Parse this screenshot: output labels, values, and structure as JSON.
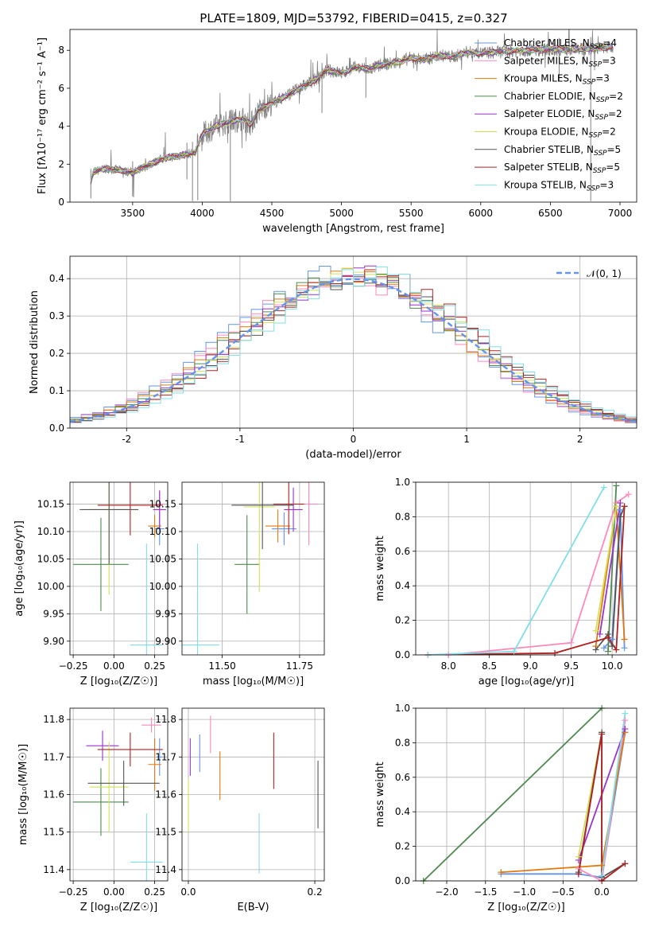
{
  "figure": {
    "title": "PLATE=1809, MJD=53792, FIBERID=0415, z=0.327"
  },
  "colors": {
    "Chabrier MILES": "#6495ed",
    "Salpeter MILES": "#ff88bb",
    "Kroupa MILES": "#e07a10",
    "Chabrier ELODIE": "#4e8a4e",
    "Salpeter ELODIE": "#9932cc",
    "Kroupa ELODIE": "#d4e157",
    "Chabrier STELIB": "#555555",
    "Salpeter STELIB": "#b22222",
    "Kroupa STELIB": "#80deea",
    "gauss": "#6495ed"
  },
  "legend": {
    "spectrum": [
      {
        "model": "Chabrier MILES",
        "text": "Chabrier MILES, N",
        "sub": "SSP",
        "tail": "=4"
      },
      {
        "model": "Salpeter MILES",
        "text": "Salpeter MILES, N",
        "sub": "SSP",
        "tail": "=3"
      },
      {
        "model": "Kroupa MILES",
        "text": "Kroupa MILES, N",
        "sub": "SSP",
        "tail": "=3"
      },
      {
        "model": "Chabrier ELODIE",
        "text": "Chabrier ELODIE, N",
        "sub": "SSP",
        "tail": "=2"
      },
      {
        "model": "Salpeter ELODIE",
        "text": "Salpeter ELODIE, N",
        "sub": "SSP",
        "tail": "=2"
      },
      {
        "model": "Kroupa ELODIE",
        "text": "Kroupa ELODIE, N",
        "sub": "SSP",
        "tail": "=2"
      },
      {
        "model": "Chabrier STELIB",
        "text": "Chabrier STELIB, N",
        "sub": "SSP",
        "tail": "=5"
      },
      {
        "model": "Salpeter STELIB",
        "text": "Salpeter STELIB, N",
        "sub": "SSP",
        "tail": "=5"
      },
      {
        "model": "Kroupa STELIB",
        "text": "Kroupa STELIB, N",
        "sub": "SSP",
        "tail": "=3"
      }
    ],
    "hist": "𝒩(0, 1)"
  },
  "chart_data": [
    {
      "id": "spectrum",
      "type": "line",
      "xlabel": "wavelength [Angstrom, rest frame]",
      "ylabel": "Flux [fλ10⁻¹⁷ erg cm⁻² s⁻¹ A⁻¹]",
      "xlim": [
        3050,
        7120
      ],
      "ylim": [
        0,
        9.1
      ],
      "xticks": [
        3500,
        4000,
        4500,
        5000,
        5500,
        6000,
        6500,
        7000
      ],
      "yticks": [
        0,
        2,
        4,
        6,
        8
      ],
      "data_color": "#808080",
      "continuum": [
        [
          3200,
          1.15
        ],
        [
          3220,
          1.6
        ],
        [
          3300,
          1.75
        ],
        [
          3400,
          1.7
        ],
        [
          3500,
          1.55
        ],
        [
          3600,
          1.9
        ],
        [
          3700,
          2.25
        ],
        [
          3800,
          2.4
        ],
        [
          3900,
          2.55
        ],
        [
          3950,
          2.6
        ],
        [
          4000,
          3.55
        ],
        [
          4100,
          4.0
        ],
        [
          4200,
          4.25
        ],
        [
          4300,
          4.4
        ],
        [
          4350,
          4.1
        ],
        [
          4400,
          4.8
        ],
        [
          4500,
          5.2
        ],
        [
          4600,
          5.6
        ],
        [
          4700,
          6.0
        ],
        [
          4800,
          6.4
        ],
        [
          4900,
          6.95
        ],
        [
          5000,
          6.8
        ],
        [
          5100,
          7.1
        ],
        [
          5200,
          7.0
        ],
        [
          5300,
          7.25
        ],
        [
          5400,
          7.35
        ],
        [
          5500,
          7.6
        ],
        [
          5600,
          7.5
        ],
        [
          5700,
          7.75
        ],
        [
          5800,
          7.65
        ],
        [
          5900,
          7.9
        ],
        [
          6000,
          7.85
        ],
        [
          6100,
          7.9
        ],
        [
          6300,
          8.0
        ],
        [
          6500,
          8.05
        ],
        [
          6700,
          8.05
        ],
        [
          6900,
          8.15
        ],
        [
          6950,
          8.2
        ]
      ],
      "dips": [
        [
          3200,
          0.2
        ],
        [
          3500,
          0.3
        ],
        [
          3890,
          1.2
        ],
        [
          3930,
          0.05
        ],
        [
          3968,
          0.1
        ],
        [
          4202,
          0.05
        ],
        [
          4860,
          4.7
        ],
        [
          5175,
          5.5
        ],
        [
          6563,
          6.4
        ],
        [
          6790,
          0.05
        ]
      ]
    },
    {
      "id": "residuals",
      "type": "histogram",
      "xlabel": "(data-model)/error",
      "ylabel": "Normed distribution",
      "xlim": [
        -2.5,
        2.5
      ],
      "ylim": [
        0,
        0.46
      ],
      "xticks": [
        -2,
        -1,
        0,
        1,
        2
      ],
      "yticks": [
        0.0,
        0.1,
        0.2,
        0.3,
        0.4
      ],
      "bin_width": 0.1,
      "gaussian": {
        "mu": 0,
        "sigma": 1
      }
    },
    {
      "id": "age_vs_Z",
      "type": "scatter",
      "xlabel": "Z [log₁₀(Z/Z☉)]",
      "ylabel": "age  [log₁₀(age/yr)]",
      "xlim": [
        -0.27,
        0.33
      ],
      "ylim": [
        9.875,
        10.19
      ],
      "xticks": [
        -0.25,
        0.0,
        0.25
      ],
      "xtick_labels": [
        "−0.25",
        "0.00",
        "0.25"
      ],
      "yticks": [
        9.9,
        9.95,
        10.0,
        10.05,
        10.1,
        10.15
      ],
      "points": [
        {
          "model": "Chabrier MILES",
          "x": 0.28,
          "y": 10.105,
          "xerr": 0.03,
          "yerr": 0.03
        },
        {
          "model": "Salpeter MILES",
          "x": 0.28,
          "y": 10.15,
          "xerr": 0.03,
          "yerr": 0.025
        },
        {
          "model": "Kroupa MILES",
          "x": 0.25,
          "y": 10.11,
          "xerr": 0.04,
          "yerr": 0.02
        },
        {
          "model": "Chabrier ELODIE",
          "x": -0.08,
          "y": 10.04,
          "xerr": 0.17,
          "yerr": 0.085
        },
        {
          "model": "Salpeter ELODIE",
          "x": 0.28,
          "y": 10.14,
          "xerr": 0.04,
          "yerr": 0.035
        },
        {
          "model": "Kroupa ELODIE",
          "x": -0.03,
          "y": 10.14,
          "xerr": 0.12,
          "yerr": 0.155
        },
        {
          "model": "Chabrier STELIB",
          "x": -0.03,
          "y": 10.14,
          "xerr": 0.18,
          "yerr": 0.1
        },
        {
          "model": "Salpeter STELIB",
          "x": 0.1,
          "y": 10.148,
          "xerr": 0.2,
          "yerr": 0.055
        },
        {
          "model": "Kroupa STELIB",
          "x": 0.2,
          "y": 9.893,
          "xerr": 0.1,
          "yerr": 0.185
        }
      ]
    },
    {
      "id": "age_vs_mass",
      "type": "scatter",
      "xlabel": "mass [log₁₀(M/M☉)]",
      "ylabel": "",
      "xlim": [
        11.37,
        11.83
      ],
      "ylim": [
        9.875,
        10.19
      ],
      "xticks": [
        11.5,
        11.75
      ],
      "xtick_labels": [
        "11.50",
        "11.75"
      ],
      "yticks": [
        9.9,
        9.95,
        10.0,
        10.05,
        10.1,
        10.15
      ],
      "points": [
        {
          "model": "Chabrier MILES",
          "x": 11.7,
          "y": 10.105,
          "xerr": 0.04,
          "yerr": 0.03
        },
        {
          "model": "Salpeter MILES",
          "x": 11.78,
          "y": 10.15,
          "xerr": 0.03,
          "yerr": 0.075
        },
        {
          "model": "Kroupa MILES",
          "x": 11.68,
          "y": 10.11,
          "xerr": 0.04,
          "yerr": 0.03
        },
        {
          "model": "Chabrier ELODIE",
          "x": 11.58,
          "y": 10.04,
          "xerr": 0.04,
          "yerr": 0.09
        },
        {
          "model": "Salpeter ELODIE",
          "x": 11.73,
          "y": 10.14,
          "xerr": 0.03,
          "yerr": 0.04
        },
        {
          "model": "Kroupa ELODIE",
          "x": 11.62,
          "y": 10.145,
          "xerr": 0.05,
          "yerr": 0.155
        },
        {
          "model": "Chabrier STELIB",
          "x": 11.63,
          "y": 10.148,
          "xerr": 0.1,
          "yerr": 0.08
        },
        {
          "model": "Salpeter STELIB",
          "x": 11.715,
          "y": 10.15,
          "xerr": 0.05,
          "yerr": 0.055
        },
        {
          "model": "Kroupa STELIB",
          "x": 11.42,
          "y": 9.893,
          "xerr": 0.07,
          "yerr": 0.185
        }
      ]
    },
    {
      "id": "weight_vs_age",
      "type": "line",
      "xlabel": "age  [log₁₀(age/yr)]",
      "ylabel": "mass weight",
      "xlim": [
        7.6,
        10.3
      ],
      "ylim": [
        0,
        1.0
      ],
      "xticks": [
        8.0,
        8.5,
        9.0,
        9.5,
        10.0
      ],
      "xtick_labels": [
        "8.0",
        "8.5",
        "9.0",
        "9.5",
        "10.0"
      ],
      "yticks": [
        0.0,
        0.2,
        0.4,
        0.6,
        0.8,
        1.0
      ],
      "series": [
        {
          "model": "Chabrier MILES",
          "x": [
            9.9,
            10.0,
            10.1,
            10.15
          ],
          "y": [
            0.04,
            0.09,
            0.84,
            0.04
          ]
        },
        {
          "model": "Salpeter MILES",
          "x": [
            7.75,
            8.0,
            9.5,
            10.05,
            10.2
          ],
          "y": [
            0.0,
            0.0,
            0.07,
            0.88,
            0.93
          ]
        },
        {
          "model": "Kroupa MILES",
          "x": [
            9.8,
            10.05,
            10.15
          ],
          "y": [
            0.05,
            0.86,
            0.09
          ]
        },
        {
          "model": "Chabrier ELODIE",
          "x": [
            9.95,
            10.05
          ],
          "y": [
            0.02,
            0.98
          ]
        },
        {
          "model": "Salpeter ELODIE",
          "x": [
            9.85,
            10.1
          ],
          "y": [
            0.12,
            0.88
          ]
        },
        {
          "model": "Kroupa ELODIE",
          "x": [
            9.8,
            10.05
          ],
          "y": [
            0.14,
            0.86
          ]
        },
        {
          "model": "Chabrier STELIB",
          "x": [
            9.8,
            9.95,
            10.0,
            10.1,
            10.15
          ],
          "y": [
            0.03,
            0.12,
            0.05,
            0.8,
            0.86
          ]
        },
        {
          "model": "Salpeter STELIB",
          "x": [
            7.75,
            9.3,
            9.95,
            10.05,
            10.15
          ],
          "y": [
            0.0,
            0.01,
            0.1,
            0.03,
            0.86
          ]
        },
        {
          "model": "Kroupa STELIB",
          "x": [
            7.75,
            8.8,
            9.9
          ],
          "y": [
            0.0,
            0.02,
            0.97
          ]
        }
      ]
    },
    {
      "id": "mass_vs_Z",
      "type": "scatter",
      "xlabel": "Z [log₁₀(Z/Z☉)]",
      "ylabel": "mass [log₁₀(M/M☉)]",
      "xlim": [
        -0.27,
        0.33
      ],
      "ylim": [
        11.37,
        11.83
      ],
      "xticks": [
        -0.25,
        0.0,
        0.25
      ],
      "xtick_labels": [
        "−0.25",
        "0.00",
        "0.25"
      ],
      "yticks": [
        11.4,
        11.5,
        11.6,
        11.7,
        11.8
      ],
      "points": [
        {
          "model": "Chabrier MILES",
          "x": 0.28,
          "y": 11.7,
          "xerr": 0.02,
          "yerr": 0.05
        },
        {
          "model": "Salpeter MILES",
          "x": 0.23,
          "y": 11.785,
          "xerr": 0.06,
          "yerr": 0.02
        },
        {
          "model": "Kroupa MILES",
          "x": 0.25,
          "y": 11.68,
          "xerr": 0.04,
          "yerr": 0.07
        },
        {
          "model": "Chabrier ELODIE",
          "x": -0.08,
          "y": 11.58,
          "xerr": 0.17,
          "yerr": 0.09
        },
        {
          "model": "Salpeter ELODIE",
          "x": -0.07,
          "y": 11.73,
          "xerr": 0.1,
          "yerr": 0.04
        },
        {
          "model": "Kroupa ELODIE",
          "x": -0.03,
          "y": 11.62,
          "xerr": 0.12,
          "yerr": 0.12
        },
        {
          "model": "Chabrier STELIB",
          "x": 0.06,
          "y": 11.63,
          "xerr": 0.22,
          "yerr": 0.06
        },
        {
          "model": "Salpeter STELIB",
          "x": 0.1,
          "y": 11.72,
          "xerr": 0.2,
          "yerr": 0.045
        },
        {
          "model": "Kroupa STELIB",
          "x": 0.2,
          "y": 11.42,
          "xerr": 0.1,
          "yerr": 0.13
        }
      ]
    },
    {
      "id": "mass_vs_ebv",
      "type": "scatter",
      "xlabel": "E(B-V)",
      "ylabel": "",
      "xlim": [
        -0.01,
        0.215
      ],
      "ylim": [
        11.37,
        11.83
      ],
      "xticks": [
        0.0,
        0.2
      ],
      "xtick_labels": [
        "0.0",
        "0.2"
      ],
      "yticks": [
        11.4,
        11.5,
        11.6,
        11.7,
        11.8
      ],
      "points": [
        {
          "model": "Chabrier MILES",
          "x": 0.018,
          "y": 11.71,
          "xerr": 0,
          "yerr": 0.05
        },
        {
          "model": "Salpeter MILES",
          "x": 0.035,
          "y": 11.76,
          "xerr": 0,
          "yerr": 0.05
        },
        {
          "model": "Kroupa MILES",
          "x": 0.05,
          "y": 11.65,
          "xerr": 0,
          "yerr": 0.065
        },
        {
          "model": "Salpeter ELODIE",
          "x": 0.003,
          "y": 11.7,
          "xerr": 0,
          "yerr": 0.05
        },
        {
          "model": "Kroupa ELODIE",
          "x": 0.0,
          "y": 11.57,
          "xerr": 0,
          "yerr": 0.07
        },
        {
          "model": "Chabrier STELIB",
          "x": 0.205,
          "y": 11.6,
          "xerr": 0,
          "yerr": 0.09
        },
        {
          "model": "Salpeter STELIB",
          "x": 0.135,
          "y": 11.69,
          "xerr": 0,
          "yerr": 0.075
        },
        {
          "model": "Kroupa STELIB",
          "x": 0.112,
          "y": 11.47,
          "xerr": 0,
          "yerr": 0.08
        }
      ]
    },
    {
      "id": "weight_vs_Z",
      "type": "line",
      "xlabel": "Z [log₁₀(Z/Z☉)]",
      "ylabel": "mass weight",
      "xlim": [
        -2.4,
        0.45
      ],
      "ylim": [
        0,
        1.0
      ],
      "xticks": [
        -2.0,
        -1.5,
        -1.0,
        -0.5,
        0.0
      ],
      "xtick_labels": [
        "−2.0",
        "−1.5",
        "−1.0",
        "−0.5",
        "0.0"
      ],
      "yticks": [
        0.0,
        0.2,
        0.4,
        0.6,
        0.8,
        1.0
      ],
      "series": [
        {
          "model": "Chabrier MILES",
          "x": [
            -1.3,
            -0.3,
            0.0,
            0.3
          ],
          "y": [
            0.04,
            0.04,
            0.02,
            0.86
          ]
        },
        {
          "model": "Salpeter MILES",
          "x": [
            -0.3,
            0.0,
            0.3
          ],
          "y": [
            0.07,
            0.0,
            0.93
          ]
        },
        {
          "model": "Kroupa MILES",
          "x": [
            -1.3,
            0.0,
            0.3
          ],
          "y": [
            0.05,
            0.09,
            0.86
          ]
        },
        {
          "model": "Chabrier ELODIE",
          "x": [
            -2.3,
            0.0
          ],
          "y": [
            0.0,
            1.0
          ]
        },
        {
          "model": "Salpeter ELODIE",
          "x": [
            -0.3,
            0.3
          ],
          "y": [
            0.12,
            0.88
          ]
        },
        {
          "model": "Kroupa ELODIE",
          "x": [
            -0.3,
            0.0
          ],
          "y": [
            0.14,
            0.86
          ]
        },
        {
          "model": "Chabrier STELIB",
          "x": [
            -0.3,
            0.0,
            0.0,
            0.3
          ],
          "y": [
            0.05,
            0.86,
            0.02,
            0.1
          ]
        },
        {
          "model": "Salpeter STELIB",
          "x": [
            -0.3,
            0.0,
            0.0,
            0.3
          ],
          "y": [
            0.04,
            0.85,
            0.0,
            0.1
          ]
        },
        {
          "model": "Kroupa STELIB",
          "x": [
            0.0,
            0.3
          ],
          "y": [
            0.03,
            0.97
          ]
        }
      ]
    }
  ]
}
